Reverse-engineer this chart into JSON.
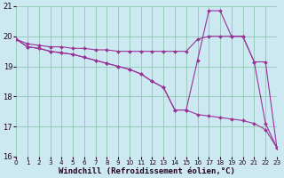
{
  "background_color": "#cce8f0",
  "grid_color": "#99ccbb",
  "line_color": "#993399",
  "x_min": 0,
  "x_max": 23,
  "y_min": 16,
  "y_max": 21,
  "xlabel": "Windchill (Refroidissement éolien,°C)",
  "series": [
    {
      "x": [
        0,
        1,
        2,
        3,
        4,
        5,
        6,
        7,
        8,
        9,
        10,
        11,
        12,
        13,
        14,
        15,
        16,
        17,
        18,
        19,
        20,
        21,
        22,
        23
      ],
      "y": [
        19.9,
        19.75,
        19.7,
        19.65,
        19.65,
        19.6,
        19.6,
        19.55,
        19.55,
        19.5,
        19.5,
        19.5,
        19.5,
        19.5,
        19.5,
        19.5,
        19.9,
        20.0,
        20.0,
        20.0,
        20.0,
        19.15,
        19.15,
        16.3
      ]
    },
    {
      "x": [
        0,
        1,
        2,
        3,
        4,
        5,
        6,
        7,
        8,
        9,
        10,
        11,
        12,
        13,
        14,
        15,
        16,
        17,
        18,
        19,
        20,
        21,
        22,
        23
      ],
      "y": [
        19.9,
        19.65,
        19.6,
        19.5,
        19.45,
        19.4,
        19.3,
        19.2,
        19.1,
        19.0,
        18.9,
        18.75,
        18.5,
        18.3,
        17.55,
        17.55,
        19.2,
        20.85,
        20.85,
        20.0,
        20.0,
        19.15,
        17.1,
        16.3
      ]
    },
    {
      "x": [
        0,
        1,
        2,
        3,
        4,
        5,
        6,
        7,
        8,
        9,
        10,
        11,
        12,
        13,
        14,
        15,
        16,
        17,
        18,
        19,
        20,
        21,
        22,
        23
      ],
      "y": [
        19.9,
        19.65,
        19.6,
        19.5,
        19.45,
        19.4,
        19.3,
        19.2,
        19.1,
        19.0,
        18.9,
        18.75,
        18.5,
        18.3,
        17.55,
        17.55,
        17.4,
        17.35,
        17.3,
        17.25,
        17.2,
        17.1,
        16.9,
        16.3
      ]
    }
  ],
  "yticks": [
    16,
    17,
    18,
    19,
    20,
    21
  ],
  "xticks": [
    0,
    1,
    2,
    3,
    4,
    5,
    6,
    7,
    8,
    9,
    10,
    11,
    12,
    13,
    14,
    15,
    16,
    17,
    18,
    19,
    20,
    21,
    22,
    23
  ],
  "marker": "D",
  "marker_size": 2.0,
  "line_width": 0.8,
  "tick_fontsize": 6.0,
  "xlabel_fontsize": 6.5
}
